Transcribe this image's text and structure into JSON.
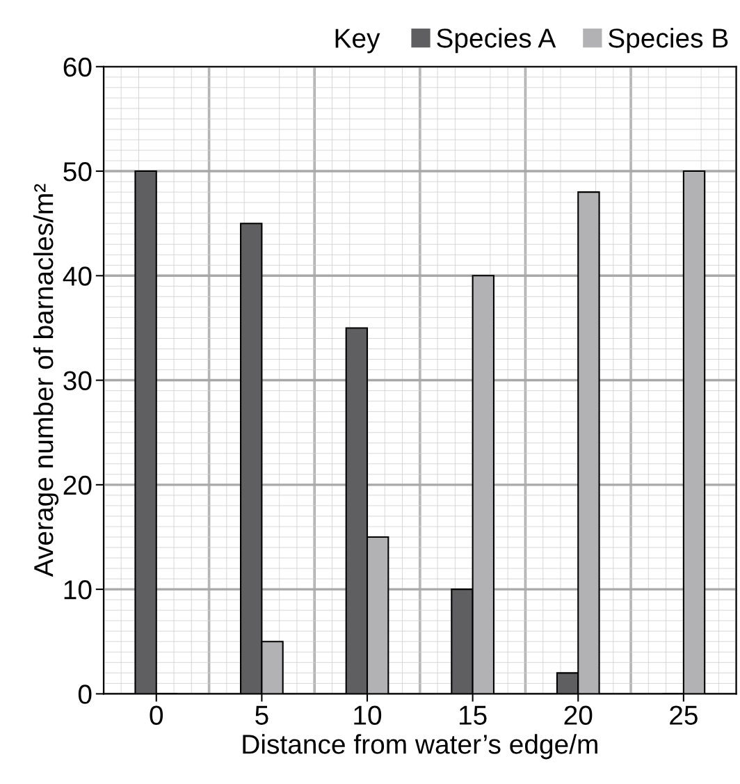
{
  "chart_data": {
    "type": "bar",
    "xlabel": "Distance from water’s edge/m",
    "ylabel": "Average number of barnacles/m²",
    "legend_title": "Key",
    "categories": [
      "0",
      "5",
      "10",
      "15",
      "20",
      "25"
    ],
    "series": [
      {
        "name": "Species A",
        "color": "#5f5f61",
        "values": [
          50,
          45,
          35,
          10,
          2,
          0
        ]
      },
      {
        "name": "Species B",
        "color": "#b2b2b5",
        "values": [
          0,
          5,
          15,
          40,
          48,
          50
        ]
      }
    ],
    "ylim": [
      0,
      60
    ],
    "yticks": [
      0,
      10,
      20,
      30,
      40,
      50,
      60
    ],
    "grid": true,
    "legend": "top"
  }
}
